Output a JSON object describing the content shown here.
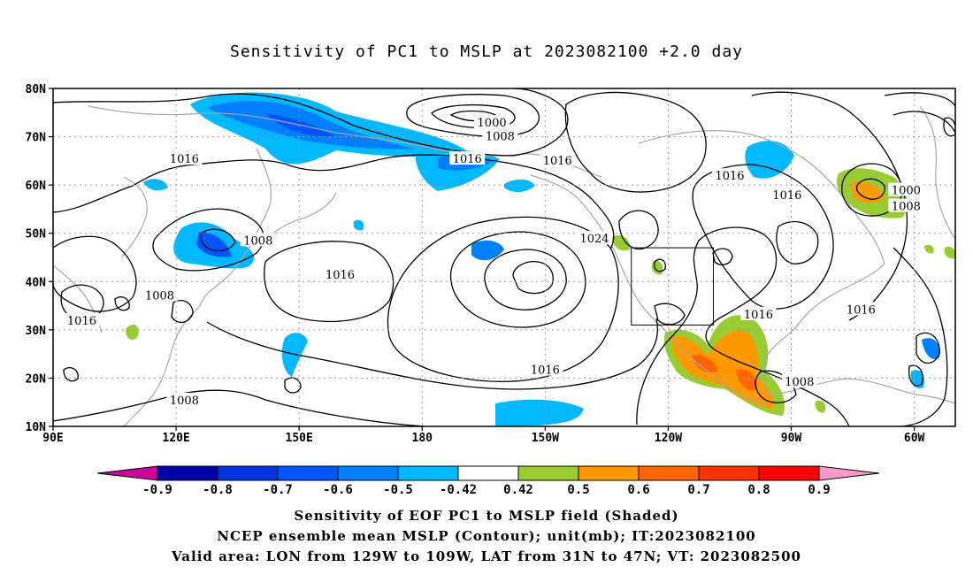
{
  "title": "Sensitivity of PC1 to MSLP at 2023082100 +2.0 day",
  "map": {
    "lat_labels": [
      "80N",
      "70N",
      "60N",
      "50N",
      "40N",
      "30N",
      "20N",
      "10N"
    ],
    "lon_labels": [
      "90E",
      "120E",
      "150E",
      "180",
      "150W",
      "120W",
      "90W",
      "60W"
    ],
    "contour_labels": [
      {
        "text": "1000",
        "lon": 197,
        "lat": 73
      },
      {
        "text": "1008",
        "lon": 199,
        "lat": 70.2
      },
      {
        "text": "1016",
        "lon": 122,
        "lat": 65.5
      },
      {
        "text": "1016",
        "lon": 191,
        "lat": 65.5
      },
      {
        "text": "1016",
        "lon": 213,
        "lat": 65.2
      },
      {
        "text": "1016",
        "lon": 255,
        "lat": 62
      },
      {
        "text": "1016",
        "lon": 269,
        "lat": 58
      },
      {
        "text": "1000",
        "lon": 298,
        "lat": 59
      },
      {
        "text": "1008",
        "lon": 298,
        "lat": 55.7
      },
      {
        "text": "1008",
        "lon": 140,
        "lat": 48.6
      },
      {
        "text": "1024",
        "lon": 222,
        "lat": 49
      },
      {
        "text": "1016",
        "lon": 160,
        "lat": 41.5
      },
      {
        "text": "1008",
        "lon": 116,
        "lat": 37.2
      },
      {
        "text": "1016",
        "lon": 97,
        "lat": 32
      },
      {
        "text": "1016",
        "lon": 262,
        "lat": 33.3
      },
      {
        "text": "1016",
        "lon": 287,
        "lat": 34.3
      },
      {
        "text": "1016",
        "lon": 210,
        "lat": 21.8
      },
      {
        "text": "1008",
        "lon": 272,
        "lat": 19.3
      },
      {
        "text": "1008",
        "lon": 122,
        "lat": 15.5
      }
    ],
    "valid_box": {
      "lon_from": 231,
      "lon_to": 251,
      "lat_from": 31,
      "lat_to": 47
    }
  },
  "colorbar": {
    "labels": [
      "-0.9",
      "-0.8",
      "-0.7",
      "-0.6",
      "-0.5",
      "-0.42",
      "0.42",
      "0.5",
      "0.6",
      "0.7",
      "0.8",
      "0.9"
    ],
    "colors": [
      "#0000aa",
      "#0033dd",
      "#0055ff",
      "#0080ff",
      "#00b8ff",
      "#ffffff",
      "#99cc33",
      "#ff9900",
      "#ff6600",
      "#ff3300",
      "#ff0000"
    ],
    "low_color": "#cc0099",
    "high_color": "#ff99cc"
  },
  "footer": {
    "line1": "Sensitivity of EOF PC1 to MSLP field (Shaded)",
    "line2": "NCEP ensemble mean MSLP (Contour); unit(mb); IT:2023082100",
    "line3": "Valid area: LON from 129W to 109W, LAT from 31N to 47N; VT: 2023082500"
  }
}
